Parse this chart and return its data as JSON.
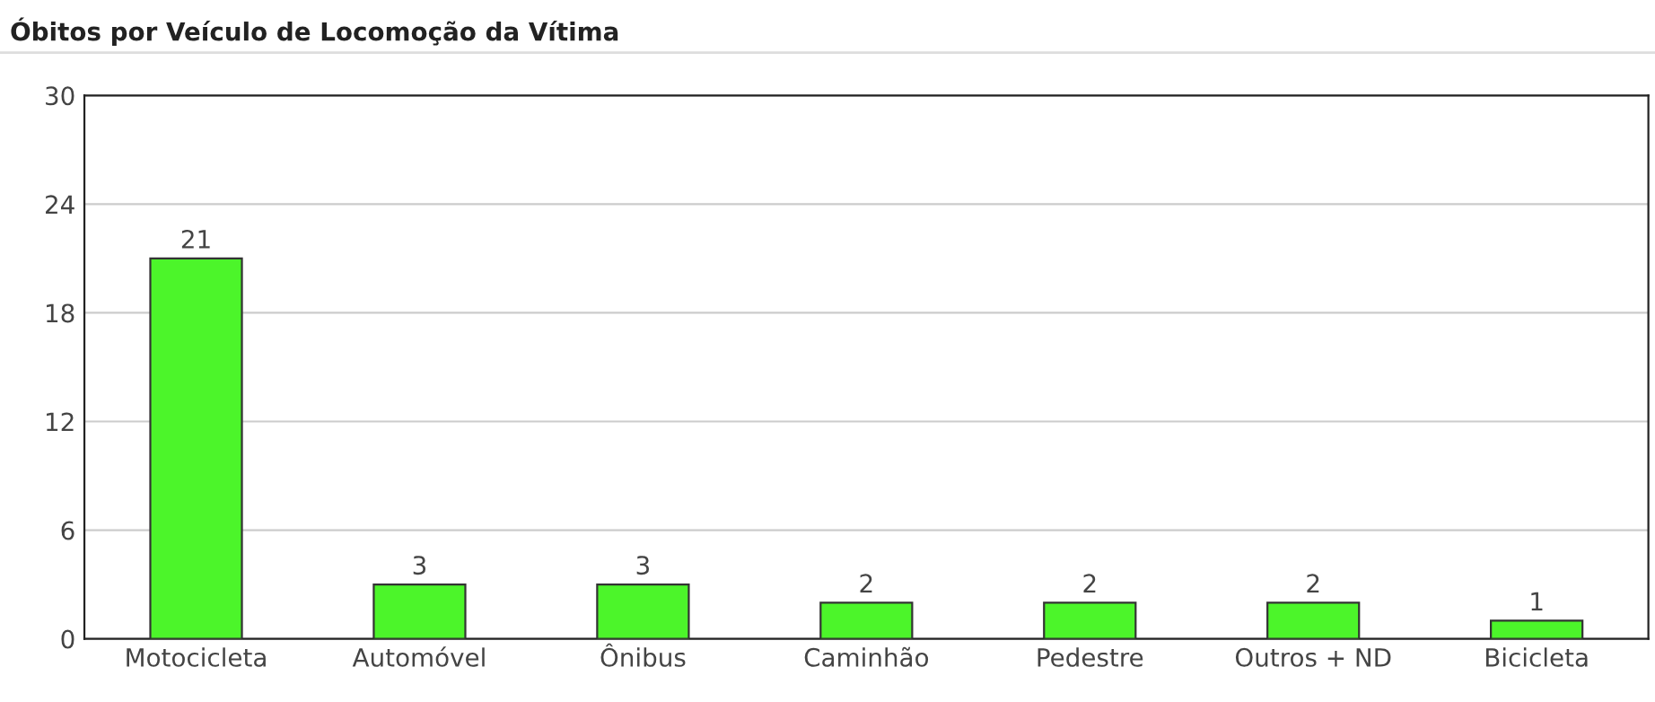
{
  "chart_data": {
    "type": "bar",
    "title": "Óbitos por Veículo de Locomoção da Vítima",
    "categories": [
      "Motocicleta",
      "Automóvel",
      "Ônibus",
      "Caminhão",
      "Pedestre",
      "Outros + ND",
      "Bicicleta"
    ],
    "values": [
      21,
      3,
      3,
      2,
      2,
      2,
      1
    ],
    "color": "#4cf52a",
    "ylim": [
      0,
      30
    ],
    "yticks": [
      0,
      6,
      12,
      18,
      24,
      30
    ],
    "grid": "y",
    "data_labels": true
  }
}
